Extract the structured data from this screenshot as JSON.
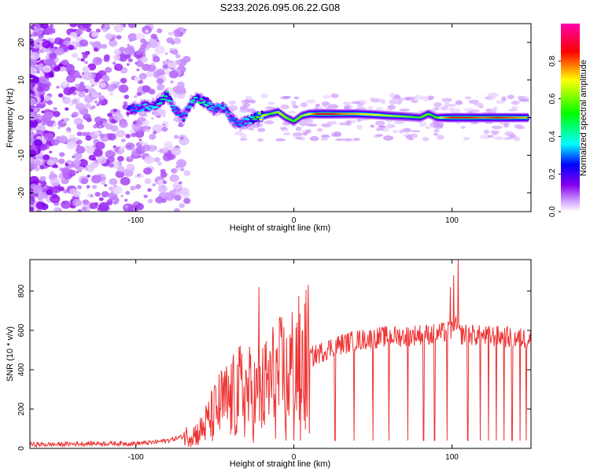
{
  "title": "S233.2026.095.06.22.G08",
  "chart_data": [
    {
      "type": "heatmap",
      "title": "S233.2026.095.06.22.G08",
      "xlabel": "Height of straight line (km)",
      "ylabel": "Frequency (Hz)",
      "xlim": [
        -167,
        150
      ],
      "ylim": [
        -25,
        25
      ],
      "xticks": [
        -100,
        0,
        100
      ],
      "yticks": [
        -20,
        -10,
        0,
        10,
        20
      ],
      "colorbar": {
        "label": "Normalized spectral amplitude",
        "range": [
          0,
          1
        ],
        "ticks": [
          "0.0",
          "0.2",
          "0.4",
          "0.6",
          "0.8"
        ],
        "tick_values": [
          0,
          0.2,
          0.4,
          0.6,
          0.8
        ],
        "colors": [
          "#ffffff",
          "#cc99ff",
          "#8800ee",
          "#0000ff",
          "#00ffff",
          "#00ff00",
          "#ffff00",
          "#ff0000",
          "#ff00aa"
        ]
      },
      "ridge": {
        "x": [
          -105,
          -100,
          -95,
          -90,
          -85,
          -80,
          -75,
          -70,
          -65,
          -60,
          -55,
          -50,
          -45,
          -40,
          -35,
          -30,
          -25,
          -20,
          -15,
          -10,
          -5,
          0,
          5,
          10,
          15,
          20,
          30,
          40,
          50,
          60,
          70,
          80,
          85,
          88,
          90,
          95,
          100,
          110,
          120,
          130,
          140,
          148
        ],
        "y": [
          2,
          2.5,
          3,
          3,
          4,
          6,
          2,
          0,
          4,
          5,
          4,
          2,
          3,
          0,
          -2,
          -1,
          0,
          0.5,
          1,
          1.5,
          0,
          -1,
          0.5,
          1,
          1,
          1,
          1,
          1,
          0.8,
          0.5,
          0.3,
          0,
          1,
          0.5,
          0,
          0,
          0,
          0,
          0,
          0,
          0,
          0
        ],
        "amplitude": [
          0.25,
          0.3,
          0.35,
          0.35,
          0.4,
          0.45,
          0.3,
          0.3,
          0.35,
          0.45,
          0.4,
          0.3,
          0.35,
          0.3,
          0.3,
          0.35,
          0.45,
          0.75,
          0.55,
          0.65,
          0.6,
          0.55,
          0.6,
          0.7,
          0.85,
          0.9,
          0.8,
          0.75,
          0.7,
          0.65,
          0.6,
          0.55,
          0.6,
          0.5,
          0.55,
          0.75,
          0.85,
          0.85,
          0.8,
          0.85,
          0.8,
          0.75
        ]
      }
    },
    {
      "type": "line",
      "title": "",
      "xlabel": "Height of straight line (km)",
      "ylabel": "SNR (10 * v/v)",
      "xlim": [
        -167,
        150
      ],
      "ylim": [
        0,
        960
      ],
      "xticks": [
        -100,
        0,
        100
      ],
      "yticks": [
        0,
        200,
        400,
        600,
        800
      ],
      "series": [
        {
          "name": "SNR",
          "color": "#ee3333",
          "x": [
            -167,
            -150,
            -130,
            -110,
            -100,
            -90,
            -80,
            -70,
            -60,
            -55,
            -50,
            -45,
            -40,
            -35,
            -30,
            -25,
            -20,
            -15,
            -10,
            -5,
            0,
            5,
            10,
            15,
            20,
            25,
            30,
            40,
            50,
            60,
            70,
            80,
            90,
            95,
            100,
            103,
            105,
            110,
            120,
            130,
            140,
            150
          ],
          "y": [
            20,
            20,
            25,
            25,
            25,
            30,
            40,
            60,
            80,
            130,
            180,
            230,
            240,
            280,
            290,
            260,
            280,
            340,
            350,
            380,
            400,
            420,
            460,
            480,
            500,
            520,
            530,
            550,
            560,
            570,
            570,
            580,
            580,
            590,
            600,
            620,
            580,
            580,
            570,
            570,
            560,
            560
          ]
        }
      ],
      "spikes_up": [
        {
          "x": -22,
          "y": 820
        },
        {
          "x": 2,
          "y": 640
        },
        {
          "x": 96,
          "y": 600
        },
        {
          "x": 99,
          "y": 820
        },
        {
          "x": 101,
          "y": 880
        },
        {
          "x": 104,
          "y": 960
        }
      ],
      "dropouts_x": [
        -5,
        0,
        4,
        26,
        38,
        50,
        60,
        72,
        82,
        89,
        97,
        110,
        118,
        123,
        128,
        133,
        138,
        143,
        147
      ]
    }
  ]
}
